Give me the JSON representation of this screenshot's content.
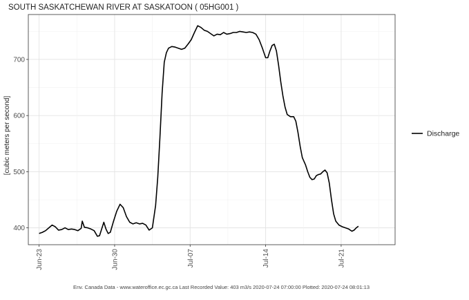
{
  "chart_data": {
    "type": "line",
    "title": "SOUTH SASKATCHEWAN RIVER AT SASKATOON ( 05HG001 )",
    "ylabel": "[cubic meters per second]",
    "xlabel": "",
    "x_start_date": "2020-06-23",
    "xlim": [
      "2020-06-22",
      "2020-07-26"
    ],
    "ylim": [
      370,
      780
    ],
    "x_ticks": [
      {
        "date": "2020-06-23",
        "label": "Jun-23"
      },
      {
        "date": "2020-06-30",
        "label": "Jun-30"
      },
      {
        "date": "2020-07-07",
        "label": "Jul-07"
      },
      {
        "date": "2020-07-14",
        "label": "Jul-14"
      },
      {
        "date": "2020-07-21",
        "label": "Jul-21"
      }
    ],
    "y_ticks": [
      400,
      500,
      600,
      700
    ],
    "grid": true,
    "legend_position": "right",
    "series": [
      {
        "name": "Discharge",
        "color": "#000000",
        "points": [
          [
            0.0,
            390
          ],
          [
            0.3,
            392
          ],
          [
            0.6,
            395
          ],
          [
            0.9,
            400
          ],
          [
            1.2,
            405
          ],
          [
            1.5,
            402
          ],
          [
            1.8,
            396
          ],
          [
            2.1,
            397
          ],
          [
            2.4,
            400
          ],
          [
            2.7,
            397
          ],
          [
            3.0,
            398
          ],
          [
            3.3,
            397
          ],
          [
            3.6,
            395
          ],
          [
            3.9,
            399
          ],
          [
            4.0,
            412
          ],
          [
            4.2,
            401
          ],
          [
            4.5,
            400
          ],
          [
            4.8,
            398
          ],
          [
            5.1,
            395
          ],
          [
            5.4,
            385
          ],
          [
            5.6,
            386
          ],
          [
            5.8,
            398
          ],
          [
            6.0,
            410
          ],
          [
            6.2,
            398
          ],
          [
            6.4,
            390
          ],
          [
            6.6,
            392
          ],
          [
            6.9,
            412
          ],
          [
            7.2,
            430
          ],
          [
            7.5,
            442
          ],
          [
            7.8,
            436
          ],
          [
            8.1,
            420
          ],
          [
            8.4,
            410
          ],
          [
            8.7,
            407
          ],
          [
            9.0,
            409
          ],
          [
            9.3,
            407
          ],
          [
            9.6,
            408
          ],
          [
            9.9,
            405
          ],
          [
            10.2,
            396
          ],
          [
            10.5,
            400
          ],
          [
            10.8,
            440
          ],
          [
            11.0,
            490
          ],
          [
            11.2,
            560
          ],
          [
            11.4,
            640
          ],
          [
            11.6,
            695
          ],
          [
            11.8,
            712
          ],
          [
            12.0,
            720
          ],
          [
            12.3,
            723
          ],
          [
            12.6,
            722
          ],
          [
            12.9,
            720
          ],
          [
            13.2,
            718
          ],
          [
            13.5,
            720
          ],
          [
            13.8,
            727
          ],
          [
            14.1,
            735
          ],
          [
            14.4,
            748
          ],
          [
            14.7,
            760
          ],
          [
            15.0,
            757
          ],
          [
            15.3,
            752
          ],
          [
            15.6,
            750
          ],
          [
            15.9,
            746
          ],
          [
            16.2,
            742
          ],
          [
            16.5,
            745
          ],
          [
            16.8,
            744
          ],
          [
            17.1,
            748
          ],
          [
            17.4,
            745
          ],
          [
            17.7,
            746
          ],
          [
            18.0,
            748
          ],
          [
            18.3,
            748
          ],
          [
            18.6,
            750
          ],
          [
            18.9,
            749
          ],
          [
            19.2,
            748
          ],
          [
            19.5,
            749
          ],
          [
            19.8,
            748
          ],
          [
            20.1,
            745
          ],
          [
            20.4,
            735
          ],
          [
            20.7,
            720
          ],
          [
            21.0,
            703
          ],
          [
            21.2,
            703
          ],
          [
            21.4,
            715
          ],
          [
            21.6,
            725
          ],
          [
            21.8,
            727
          ],
          [
            22.0,
            715
          ],
          [
            22.2,
            690
          ],
          [
            22.4,
            660
          ],
          [
            22.6,
            635
          ],
          [
            22.8,
            615
          ],
          [
            23.0,
            602
          ],
          [
            23.3,
            598
          ],
          [
            23.6,
            598
          ],
          [
            23.8,
            590
          ],
          [
            24.0,
            570
          ],
          [
            24.2,
            545
          ],
          [
            24.4,
            525
          ],
          [
            24.7,
            512
          ],
          [
            24.9,
            500
          ],
          [
            25.1,
            490
          ],
          [
            25.3,
            486
          ],
          [
            25.5,
            487
          ],
          [
            25.7,
            493
          ],
          [
            25.9,
            495
          ],
          [
            26.1,
            496
          ],
          [
            26.3,
            500
          ],
          [
            26.5,
            503
          ],
          [
            26.7,
            498
          ],
          [
            26.9,
            480
          ],
          [
            27.1,
            450
          ],
          [
            27.3,
            425
          ],
          [
            27.5,
            412
          ],
          [
            27.8,
            405
          ],
          [
            28.1,
            402
          ],
          [
            28.4,
            400
          ],
          [
            28.7,
            398
          ],
          [
            29.0,
            394
          ],
          [
            29.2,
            396
          ],
          [
            29.4,
            400
          ],
          [
            29.6,
            403
          ]
        ]
      }
    ]
  },
  "footer": "Env. Canada Data - www.wateroffice.ec.gc.ca   Last Recorded Value: 403 m3/s  2020-07-24 07:00:00   Plotted: 2020-07-24 08:01:13"
}
